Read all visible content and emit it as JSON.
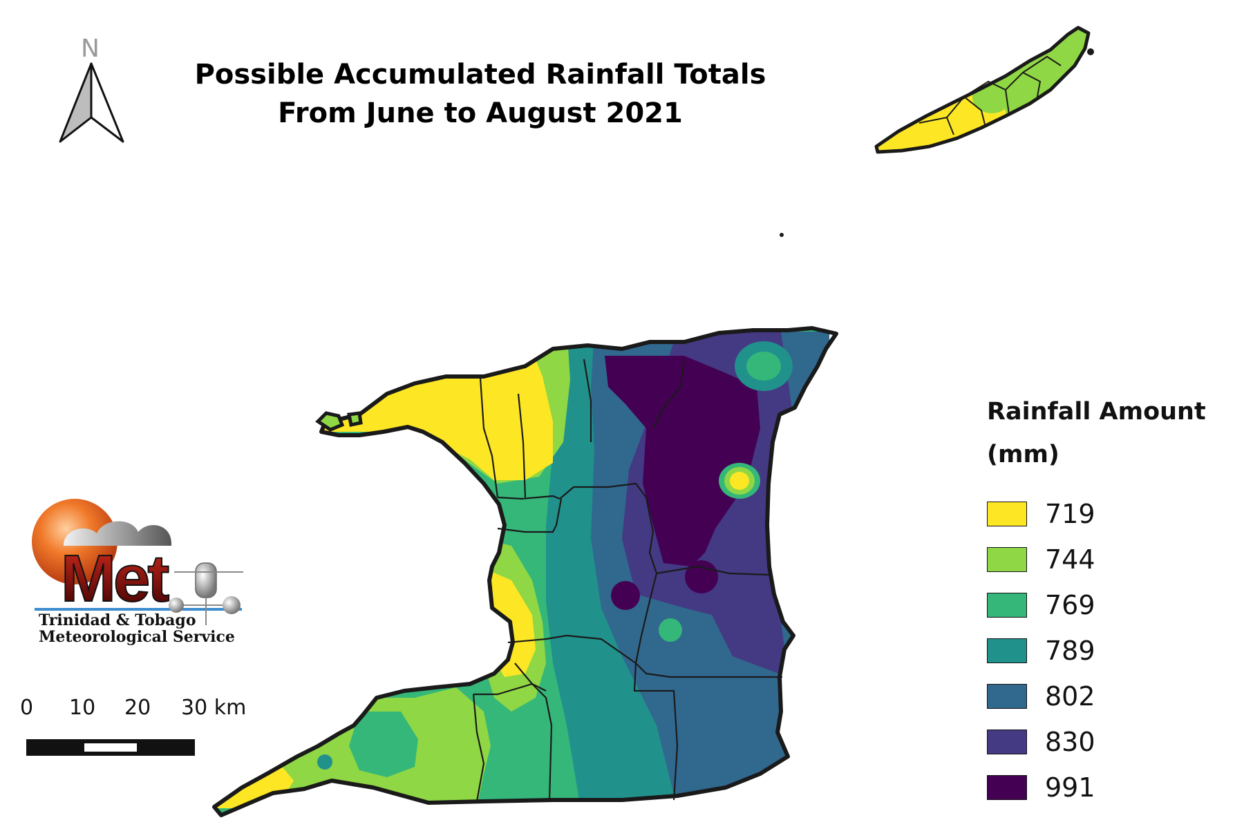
{
  "title": {
    "line1": "Possible Accumulated Rainfall Totals",
    "line2": "From June to August 2021"
  },
  "north_arrow": {
    "label": "N"
  },
  "legend": {
    "title_line1": "Rainfall Amount",
    "title_line2": "(mm)",
    "items": [
      {
        "label": "719",
        "color": "#fde725"
      },
      {
        "label": "744",
        "color": "#8fd744"
      },
      {
        "label": "769",
        "color": "#35b779"
      },
      {
        "label": "789",
        "color": "#21918c"
      },
      {
        "label": "802",
        "color": "#31688e"
      },
      {
        "label": "830",
        "color": "#443983"
      },
      {
        "label": "991",
        "color": "#440154"
      }
    ]
  },
  "scale_bar": {
    "labels": [
      "0",
      "10",
      "20",
      "30 km"
    ]
  },
  "logo": {
    "wordmark": "Met",
    "line1": "Trinidad & Tobago",
    "line2": "Meteorological Service"
  }
}
